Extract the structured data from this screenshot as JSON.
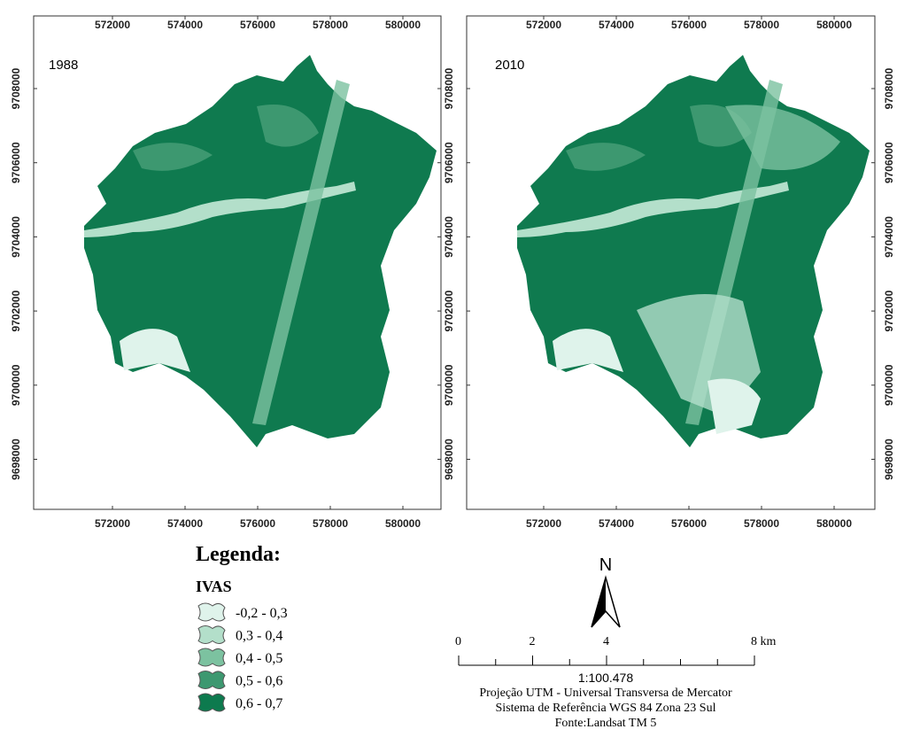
{
  "panels": [
    {
      "label": "1988"
    },
    {
      "label": "2010"
    }
  ],
  "easting_ticks": [
    572000,
    574000,
    576000,
    578000,
    580000
  ],
  "northing_ticks": [
    9708000,
    9706000,
    9704000,
    9702000,
    9700000,
    9698000
  ],
  "legend": {
    "title": "Legenda:",
    "subtitle": "IVAS",
    "classes": [
      {
        "label": "-0,2 - 0,3",
        "color": "#dff3eb"
      },
      {
        "label": "0,3 - 0,4",
        "color": "#b3dfca"
      },
      {
        "label": "0,4 - 0,5",
        "color": "#7cc2a0"
      },
      {
        "label": "0,5 - 0,6",
        "color": "#3d9870"
      },
      {
        "label": "0,6 - 0,7",
        "color": "#0d7a4e"
      }
    ]
  },
  "north": "N",
  "scale_bar": {
    "ticks": [
      {
        "value": 0,
        "label": "0"
      },
      {
        "value": 2,
        "label": "2"
      },
      {
        "value": 4,
        "label": "4"
      },
      {
        "value": 8,
        "label": "8 km"
      }
    ],
    "ratio": "1:100.478"
  },
  "notes": [
    "Projeção UTM -  Universal Transversa de Mercator",
    "Sistema de Referência WGS 84 Zona 23 Sul",
    "Fonte:Landsat TM 5"
  ]
}
